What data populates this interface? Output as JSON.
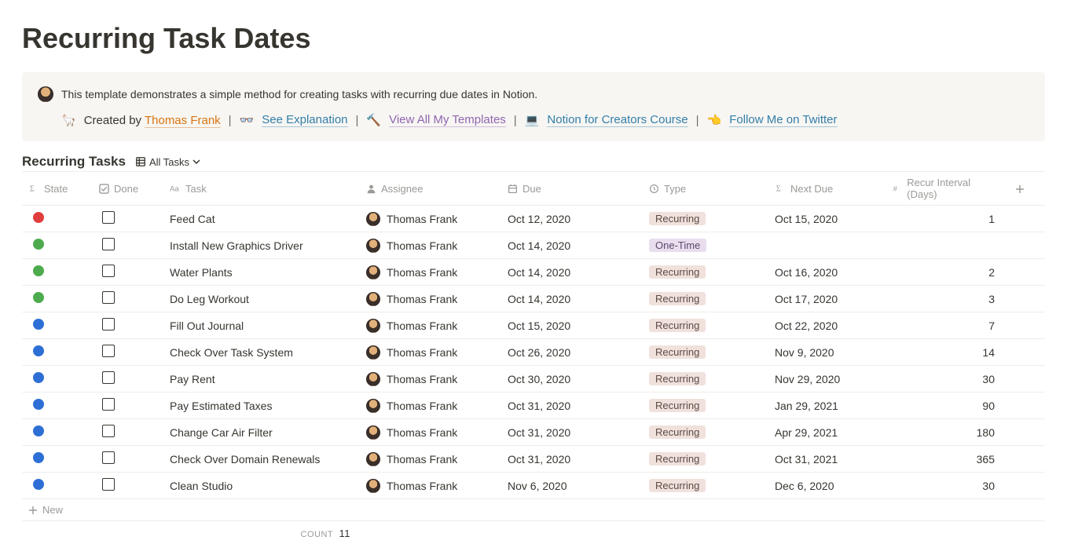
{
  "page": {
    "title": "Recurring Task Dates"
  },
  "callout": {
    "description": "This template demonstrates a simple method for creating tasks with recurring due dates in Notion.",
    "created_by_prefix": "Created by",
    "created_by_name": "Thomas Frank",
    "links": [
      {
        "emoji": "🦙",
        "text": "Created by",
        "name_text": "Thomas Frank",
        "kind": "author"
      },
      {
        "emoji": "👓",
        "text": "See Explanation",
        "color": "blue"
      },
      {
        "emoji": "🔨",
        "text": "View All My Templates",
        "color": "purple"
      },
      {
        "emoji": "💻",
        "text": "Notion for Creators Course",
        "color": "blue"
      },
      {
        "emoji": "👈",
        "text": "Follow Me on Twitter",
        "color": "blue"
      }
    ],
    "separator": "|"
  },
  "database": {
    "title": "Recurring Tasks",
    "view_name": "All Tasks",
    "new_row_label": "New",
    "count_label": "COUNT",
    "count_value": "11",
    "columns": [
      {
        "icon": "formula",
        "label": "State"
      },
      {
        "icon": "checkbox",
        "label": "Done"
      },
      {
        "icon": "title",
        "label": "Task"
      },
      {
        "icon": "person",
        "label": "Assignee"
      },
      {
        "icon": "date",
        "label": "Due"
      },
      {
        "icon": "select",
        "label": "Type"
      },
      {
        "icon": "formula",
        "label": "Next Due"
      },
      {
        "icon": "number",
        "label": "Recur Interval (Days)"
      }
    ],
    "type_colors": {
      "Recurring": {
        "bg": "#f1e1dd",
        "fg": "#5c4a45"
      },
      "One-Time": {
        "bg": "#e8deee",
        "fg": "#5a4a6e"
      }
    },
    "state_colors": {
      "red": "#e03e3e",
      "green": "#4dab4d",
      "blue": "#2e6fd6"
    },
    "rows": [
      {
        "state": "red",
        "done": false,
        "task": "Feed Cat",
        "assignee": "Thomas Frank",
        "due": "Oct 12, 2020",
        "type": "Recurring",
        "next_due": "Oct 15, 2020",
        "interval": "1"
      },
      {
        "state": "green",
        "done": false,
        "task": "Install New Graphics Driver",
        "assignee": "Thomas Frank",
        "due": "Oct 14, 2020",
        "type": "One-Time",
        "next_due": "",
        "interval": ""
      },
      {
        "state": "green",
        "done": false,
        "task": "Water Plants",
        "assignee": "Thomas Frank",
        "due": "Oct 14, 2020",
        "type": "Recurring",
        "next_due": "Oct 16, 2020",
        "interval": "2"
      },
      {
        "state": "green",
        "done": false,
        "task": "Do Leg Workout",
        "assignee": "Thomas Frank",
        "due": "Oct 14, 2020",
        "type": "Recurring",
        "next_due": "Oct 17, 2020",
        "interval": "3"
      },
      {
        "state": "blue",
        "done": false,
        "task": "Fill Out Journal",
        "assignee": "Thomas Frank",
        "due": "Oct 15, 2020",
        "type": "Recurring",
        "next_due": "Oct 22, 2020",
        "interval": "7"
      },
      {
        "state": "blue",
        "done": false,
        "task": "Check Over Task System",
        "assignee": "Thomas Frank",
        "due": "Oct 26, 2020",
        "type": "Recurring",
        "next_due": "Nov 9, 2020",
        "interval": "14"
      },
      {
        "state": "blue",
        "done": false,
        "task": "Pay Rent",
        "assignee": "Thomas Frank",
        "due": "Oct 30, 2020",
        "type": "Recurring",
        "next_due": "Nov 29, 2020",
        "interval": "30"
      },
      {
        "state": "blue",
        "done": false,
        "task": "Pay Estimated Taxes",
        "assignee": "Thomas Frank",
        "due": "Oct 31, 2020",
        "type": "Recurring",
        "next_due": "Jan 29, 2021",
        "interval": "90"
      },
      {
        "state": "blue",
        "done": false,
        "task": "Change Car Air Filter",
        "assignee": "Thomas Frank",
        "due": "Oct 31, 2020",
        "type": "Recurring",
        "next_due": "Apr 29, 2021",
        "interval": "180"
      },
      {
        "state": "blue",
        "done": false,
        "task": "Check Over Domain Renewals",
        "assignee": "Thomas Frank",
        "due": "Oct 31, 2020",
        "type": "Recurring",
        "next_due": "Oct 31, 2021",
        "interval": "365"
      },
      {
        "state": "blue",
        "done": false,
        "task": "Clean Studio",
        "assignee": "Thomas Frank",
        "due": "Nov 6, 2020",
        "type": "Recurring",
        "next_due": "Dec 6, 2020",
        "interval": "30"
      }
    ]
  }
}
